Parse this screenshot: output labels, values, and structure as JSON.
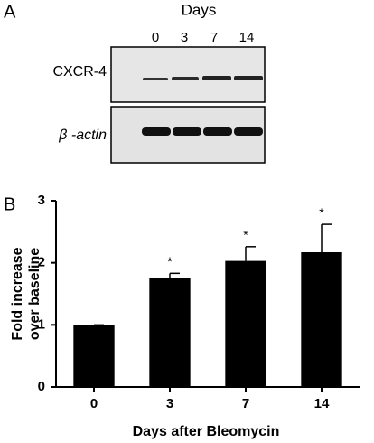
{
  "panel_a": {
    "label": "A",
    "header": "Days",
    "lanes": [
      "0",
      "3",
      "7",
      "14"
    ],
    "rows": [
      "CXCR-4",
      "β -actin"
    ]
  },
  "chart_data": {
    "type": "bar",
    "panel_label": "B",
    "categories": [
      "0",
      "3",
      "7",
      "14"
    ],
    "values": [
      1.0,
      1.75,
      2.03,
      2.17
    ],
    "errors": [
      0,
      0.08,
      0.23,
      0.45
    ],
    "value_annotations": [
      null,
      "*",
      "*",
      "*"
    ],
    "color": "#000000",
    "ylim": [
      0,
      3
    ],
    "yticks": [
      0,
      1,
      2,
      3
    ],
    "ylabel": [
      "Fold increase",
      "over baseline"
    ],
    "xlabel": "Days after Bleomycin"
  }
}
